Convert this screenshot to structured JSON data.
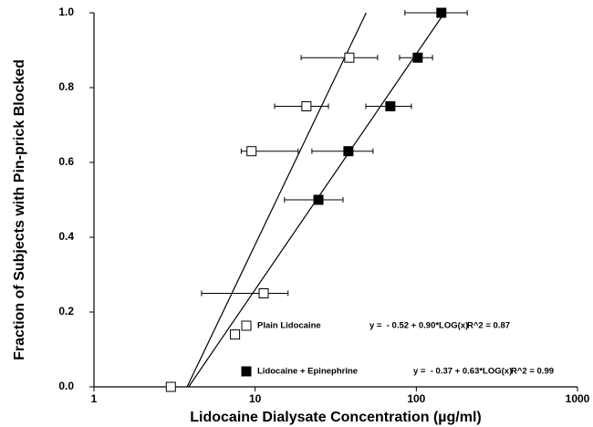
{
  "chart_data": {
    "type": "scatter",
    "x_label": "Lidocaine Dialysate Concentration (µg/ml)",
    "y_label": "Fraction of Subjects with Pin-prick Blocked",
    "x_scale": "log",
    "xlim": [
      1,
      1000
    ],
    "xticks": [
      1,
      10,
      100,
      1000
    ],
    "ylim": [
      0,
      1
    ],
    "yticks": [
      {
        "value": 0,
        "label": "0.0"
      },
      0.2,
      0.4,
      0.6,
      0.8,
      {
        "value": 1,
        "label": "1.0"
      }
    ],
    "series": [
      {
        "name": "Plain Lidocaine",
        "color": "#ffffff",
        "marker": "open-square",
        "x": [
          3.0,
          7.5,
          11.3,
          9.5,
          20.8,
          38.4
        ],
        "values": [
          0,
          0.14,
          0.25,
          0.63,
          0.75,
          0.88
        ],
        "x_low": [
          null,
          null,
          4.65,
          8.2,
          13.2,
          19.3
        ],
        "x_high": [
          null,
          null,
          16.0,
          18.5,
          28.5,
          57.5
        ],
        "equation": "y =  - 0.52 + 0.90*LOG(x)",
        "r2": "R^2 = 0.87",
        "fit": {
          "intercept": -0.52,
          "slope": 0.9
        }
      },
      {
        "name": "Lidocaine + Epinephrine",
        "color": "#000000",
        "marker": "filled-square",
        "x": [
          24.7,
          37.9,
          69,
          102,
          143
        ],
        "values": [
          0.5,
          0.63,
          0.75,
          0.88,
          1.0
        ],
        "x_low": [
          15.2,
          22.5,
          48.6,
          78.7,
          85
        ],
        "x_high": [
          35.1,
          53.9,
          93.3,
          126,
          207
        ],
        "equation": "y =  - 0.37 + 0.63*LOG(x)",
        "r2": "R^2 = 0.99",
        "fit": {
          "intercept": -0.37,
          "slope": 0.63
        }
      }
    ]
  }
}
